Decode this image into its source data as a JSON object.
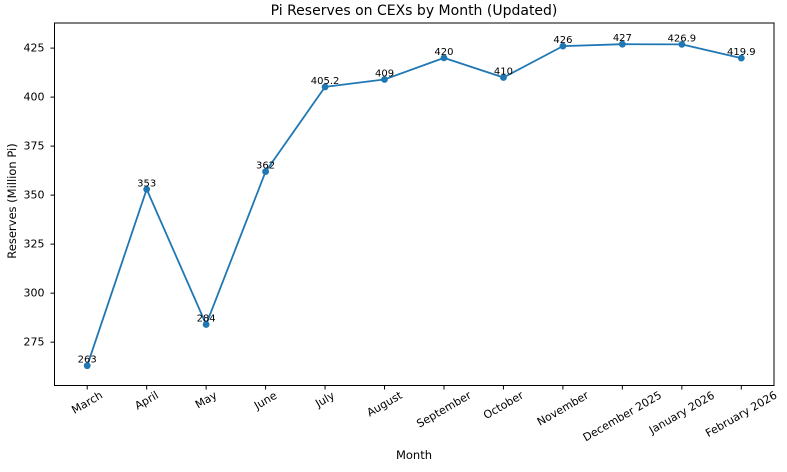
{
  "figure": {
    "background": "#ffffff"
  },
  "chart_data": {
    "type": "line",
    "title": "Pi Reserves on CEXs by Month (Updated)",
    "xlabel": "Month",
    "ylabel": "Reserves (Million Pi)",
    "categories": [
      "March",
      "April",
      "May",
      "June",
      "July",
      "August",
      "September",
      "October",
      "November",
      "December 2025",
      "January 2026",
      "February 2026"
    ],
    "values": [
      263,
      353,
      284,
      362,
      405.2,
      409,
      420,
      410,
      426,
      427,
      426.9,
      419.9
    ],
    "point_labels": [
      "263",
      "353",
      "284",
      "362",
      "405.2",
      "409",
      "420",
      "410",
      "426",
      "427",
      "426.9",
      "419.9"
    ],
    "yticks": [
      275,
      300,
      325,
      350,
      375,
      400,
      425
    ],
    "ylim": [
      252.9,
      437.8
    ],
    "x_margin": 0.55,
    "x_tick_rotation_deg": 30,
    "grid": false,
    "legend": "none",
    "line_color": "#1f77b4",
    "marker": "circle",
    "axis_color": "#000000"
  }
}
